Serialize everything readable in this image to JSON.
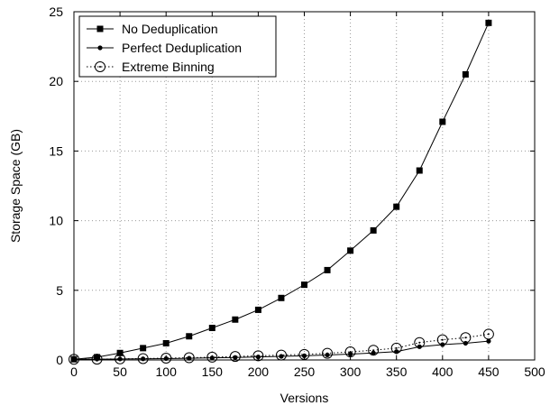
{
  "chart_data": {
    "type": "line",
    "xlabel": "Versions",
    "ylabel": "Storage Space (GB)",
    "xlim": [
      0,
      500
    ],
    "ylim": [
      0,
      25
    ],
    "xticks": [
      0,
      50,
      100,
      150,
      200,
      250,
      300,
      350,
      400,
      450,
      500
    ],
    "yticks": [
      0,
      5,
      10,
      15,
      20,
      25
    ],
    "grid": true,
    "legend_position": "top-left",
    "series": [
      {
        "name": "No Deduplication",
        "marker": "square",
        "line_style": "solid",
        "x": [
          0,
          25,
          50,
          75,
          100,
          125,
          150,
          175,
          200,
          225,
          250,
          275,
          300,
          325,
          350,
          375,
          400,
          425,
          450
        ],
        "y": [
          0.05,
          0.2,
          0.5,
          0.85,
          1.2,
          1.7,
          2.3,
          2.9,
          3.6,
          4.45,
          5.4,
          6.45,
          7.85,
          9.3,
          11.0,
          13.6,
          17.1,
          20.5,
          24.2
        ]
      },
      {
        "name": "Perfect Deduplication",
        "marker": "dot",
        "line_style": "solid",
        "x": [
          0,
          25,
          50,
          75,
          100,
          125,
          150,
          175,
          200,
          225,
          250,
          275,
          300,
          325,
          350,
          375,
          400,
          425,
          450
        ],
        "y": [
          0.05,
          0.06,
          0.07,
          0.08,
          0.1,
          0.12,
          0.15,
          0.18,
          0.22,
          0.26,
          0.3,
          0.36,
          0.42,
          0.5,
          0.6,
          0.95,
          1.1,
          1.2,
          1.35
        ]
      },
      {
        "name": "Extreme Binning",
        "marker": "circle",
        "line_style": "dotted",
        "x": [
          0,
          25,
          50,
          75,
          100,
          125,
          150,
          175,
          200,
          225,
          250,
          275,
          300,
          325,
          350,
          375,
          400,
          425,
          450
        ],
        "y": [
          0.05,
          0.06,
          0.08,
          0.1,
          0.13,
          0.16,
          0.2,
          0.25,
          0.3,
          0.35,
          0.4,
          0.48,
          0.58,
          0.7,
          0.85,
          1.25,
          1.45,
          1.6,
          1.85
        ]
      }
    ]
  }
}
